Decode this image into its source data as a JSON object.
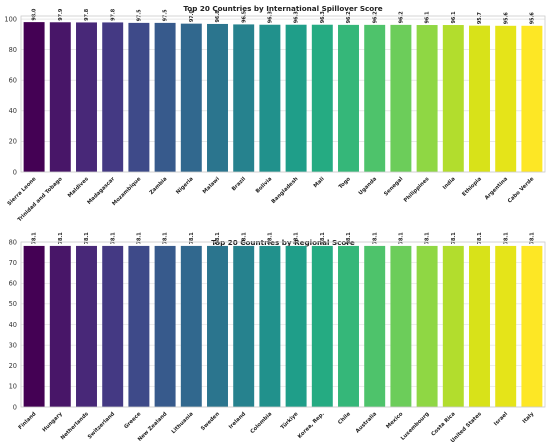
{
  "chart_data": [
    {
      "type": "bar",
      "title": "Top 20 Countries by International Spillover Score",
      "xlabel": "",
      "ylabel": "",
      "ylim": [
        0,
        102
      ],
      "yticks": [
        "0",
        "20",
        "40",
        "60",
        "80",
        "100"
      ],
      "grid": true,
      "colormap": "viridis",
      "categories": [
        "Sierra Leone",
        "Trinidad and Tobago",
        "Maldives",
        "Madagascar",
        "Mozambique",
        "Zambia",
        "Nigeria",
        "Malawi",
        "Brazil",
        "Bolivia",
        "Bangladesh",
        "Mali",
        "Togo",
        "Uganda",
        "Senegal",
        "Philippines",
        "India",
        "Ethiopia",
        "Argentina",
        "Cabo Verde"
      ],
      "values": [
        98.0,
        97.9,
        97.8,
        97.8,
        97.5,
        97.5,
        97.0,
        96.8,
        96.5,
        96.3,
        96.3,
        96.3,
        96.2,
        96.2,
        96.2,
        96.1,
        96.1,
        95.7,
        95.6,
        95.6
      ],
      "value_labels": [
        "98.0",
        "97.9",
        "97.8",
        "97.8",
        "97.5",
        "97.5",
        "97.0",
        "96.8",
        "96.5",
        "96.3",
        "96.3",
        "96.3",
        "96.2",
        "96.2",
        "96.2",
        "96.1",
        "96.1",
        "95.7",
        "95.6",
        "95.6"
      ]
    },
    {
      "type": "bar",
      "title": "Top 20 Countries by Regional Score",
      "xlabel": "",
      "ylabel": "",
      "ylim": [
        0,
        80
      ],
      "yticks": [
        "0",
        "10",
        "20",
        "30",
        "40",
        "50",
        "60",
        "70",
        "80"
      ],
      "grid": true,
      "colormap": "viridis",
      "categories": [
        "Finland",
        "Hungary",
        "Netherlands",
        "Switzerland",
        "Greece",
        "New Zealand",
        "Lithuania",
        "Sweden",
        "Ireland",
        "Colombia",
        "Türkiye",
        "Korea, Rep.",
        "Chile",
        "Australia",
        "Mexico",
        "Luxembourg",
        "Costa Rica",
        "United States",
        "Israel",
        "Italy"
      ],
      "values": [
        78.1,
        78.1,
        78.1,
        78.1,
        78.1,
        78.1,
        78.1,
        78.1,
        78.1,
        78.1,
        78.1,
        78.1,
        78.1,
        78.1,
        78.1,
        78.1,
        78.1,
        78.1,
        78.1,
        78.1
      ],
      "value_labels": [
        "78.1",
        "78.1",
        "78.1",
        "78.1",
        "78.1",
        "78.1",
        "78.1",
        "78.1",
        "78.1",
        "78.1",
        "78.1",
        "78.1",
        "78.1",
        "78.1",
        "78.1",
        "78.1",
        "78.1",
        "78.1",
        "78.1",
        "78.1"
      ]
    }
  ],
  "colors": [
    "#440154",
    "#481668",
    "#482878",
    "#443983",
    "#3e4a89",
    "#375a8c",
    "#31688e",
    "#2b758e",
    "#26828e",
    "#21918c",
    "#1f9e89",
    "#25ab82",
    "#35b779",
    "#4ec36b",
    "#6ccd5a",
    "#8fd744",
    "#b2dd2d",
    "#d8e219",
    "#e5e419",
    "#fde725"
  ]
}
